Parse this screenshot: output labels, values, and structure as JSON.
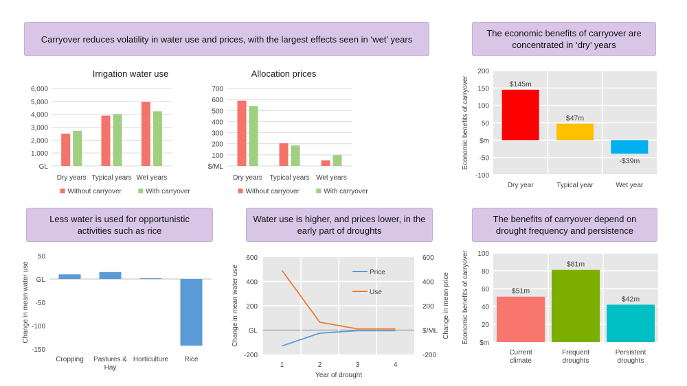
{
  "headers": [
    "Carryover reduces volatility in water use and prices, with the largest effects seen in ‘wet’ years",
    "The economic benefits of carryover are concentrated in ‘dry’ years",
    "Less water is used for opportunistic activities such as rice",
    "Water use is higher, and prices lower, in the early part of droughts",
    "The benefits of carryover depend on drought frequency and persistence"
  ],
  "chart_data": [
    {
      "type": "bar",
      "title": "Irrigation water use",
      "categories": [
        "Dry years",
        "Typical years",
        "Wet years"
      ],
      "series": [
        {
          "name": "Without carryover",
          "values": [
            2500,
            3900,
            4950
          ],
          "color": "#f4736b"
        },
        {
          "name": "With carryover",
          "values": [
            2720,
            4000,
            4230
          ],
          "color": "#9fcf80"
        }
      ],
      "ylim": [
        0,
        6000
      ],
      "yticks": [
        "GL",
        "1,000",
        "2,000",
        "3,000",
        "4,000",
        "5,000",
        "6,000"
      ],
      "legend": "bottom",
      "grid": true
    },
    {
      "type": "bar",
      "title": "Allocation prices",
      "categories": [
        "Dry years",
        "Typical years",
        "Wet years"
      ],
      "series": [
        {
          "name": "Without carryover",
          "values": [
            590,
            205,
            50
          ],
          "color": "#f4736b"
        },
        {
          "name": "With carryover",
          "values": [
            540,
            185,
            97
          ],
          "color": "#9fcf80"
        }
      ],
      "ylim": [
        0,
        700
      ],
      "yticks": [
        "$/ML",
        "100",
        "200",
        "300",
        "400",
        "500",
        "600",
        "700"
      ],
      "legend": "bottom",
      "grid": true
    },
    {
      "type": "bar",
      "title": "",
      "ylabel": "Economic benefits of carryover",
      "categories": [
        "Dry year",
        "Typical year",
        "Wet year"
      ],
      "values": [
        145,
        47,
        -39
      ],
      "data_labels": [
        "$145m",
        "$47m",
        "-$39m"
      ],
      "colors": [
        "#ff0000",
        "#ffc000",
        "#00b0f0"
      ],
      "ylim": [
        -100,
        200
      ],
      "yticks": [
        "-100",
        "-50",
        "$m",
        "50",
        "100",
        "150",
        "200"
      ],
      "grid": true
    },
    {
      "type": "bar",
      "title": "",
      "ylabel": "Change in mean water use",
      "categories": [
        "Cropping",
        "Pastures & Hay",
        "Horticulture",
        "Rice"
      ],
      "values": [
        10,
        15,
        2,
        -143
      ],
      "color": "#5b9bd5",
      "ylim": [
        -150,
        50
      ],
      "yticks": [
        "-150",
        "-100",
        "-50",
        "GL",
        "50"
      ],
      "grid": false
    },
    {
      "type": "line",
      "title": "",
      "xlabel": "Year of drought",
      "ylabel": "Change in mean water use",
      "y2label": "Change in mean price",
      "x": [
        1,
        2,
        3,
        4
      ],
      "series": [
        {
          "name": "Price",
          "values": [
            -130,
            -25,
            -5,
            -5
          ],
          "color": "#5b9bd5"
        },
        {
          "name": "Use",
          "values": [
            490,
            65,
            10,
            10
          ],
          "color": "#ed7d31"
        }
      ],
      "ylim": [
        -200,
        600
      ],
      "yticks": [
        "-200",
        "GL",
        "200",
        "400",
        "600"
      ],
      "y2ticks": [
        "-200",
        "$/ML",
        "200",
        "400",
        "600"
      ],
      "legend": "top-right",
      "grid": true
    },
    {
      "type": "bar",
      "title": "",
      "ylabel": "Economic benefits of carryover",
      "categories": [
        "Current climate",
        "Frequent droughts",
        "Persistent droughts"
      ],
      "values": [
        51,
        81,
        42
      ],
      "data_labels": [
        "$51m",
        "$81m",
        "$42m"
      ],
      "colors": [
        "#f8766d",
        "#7cae00",
        "#00bfc4"
      ],
      "ylim": [
        0,
        100
      ],
      "yticks": [
        "$m",
        "20",
        "40",
        "60",
        "80",
        "100"
      ],
      "grid": true
    }
  ]
}
